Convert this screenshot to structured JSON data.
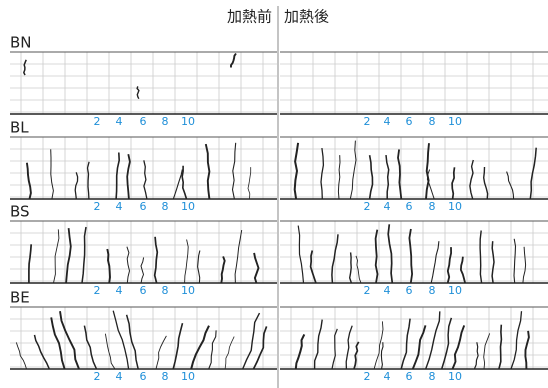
{
  "header": {
    "before": "加熱前",
    "after": "加熱後"
  },
  "panels": [
    {
      "label": "BN",
      "left_ticks": [
        2,
        4,
        6,
        8,
        10
      ],
      "right_ticks": [
        2,
        4,
        6,
        8,
        10
      ]
    },
    {
      "label": "BL",
      "left_ticks": [
        2,
        4,
        6,
        8,
        10
      ],
      "right_ticks": [
        2,
        4,
        6,
        8,
        10
      ]
    },
    {
      "label": "BS",
      "left_ticks": [
        2,
        4,
        6,
        8,
        10
      ],
      "right_ticks": [
        2,
        4,
        6,
        8,
        10
      ]
    },
    {
      "label": "BE",
      "left_ticks": [
        2,
        4,
        6,
        8,
        10
      ],
      "right_ticks": [
        2,
        4,
        6,
        8,
        10
      ]
    }
  ]
}
